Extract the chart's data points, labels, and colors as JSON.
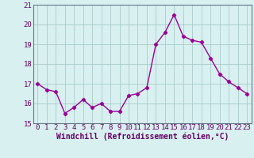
{
  "x": [
    0,
    1,
    2,
    3,
    4,
    5,
    6,
    7,
    8,
    9,
    10,
    11,
    12,
    13,
    14,
    15,
    16,
    17,
    18,
    19,
    20,
    21,
    22,
    23
  ],
  "y": [
    17.0,
    16.7,
    16.6,
    15.5,
    15.8,
    16.2,
    15.8,
    16.0,
    15.6,
    15.6,
    16.4,
    16.5,
    16.8,
    19.0,
    19.6,
    20.5,
    19.4,
    19.2,
    19.1,
    18.3,
    17.5,
    17.1,
    16.8,
    16.5
  ],
  "line_color": "#990099",
  "marker": "D",
  "marker_size": 2.2,
  "bg_color": "#d8f0f0",
  "grid_color": "#aacccc",
  "xlabel": "Windchill (Refroidissement éolien,°C)",
  "ylabel": "",
  "ylim": [
    15,
    21
  ],
  "xlim": [
    -0.5,
    23.5
  ],
  "yticks": [
    15,
    16,
    17,
    18,
    19,
    20,
    21
  ],
  "xticks": [
    0,
    1,
    2,
    3,
    4,
    5,
    6,
    7,
    8,
    9,
    10,
    11,
    12,
    13,
    14,
    15,
    16,
    17,
    18,
    19,
    20,
    21,
    22,
    23
  ],
  "xlabel_fontsize": 7.0,
  "tick_fontsize": 6.5,
  "line_width": 1.0
}
